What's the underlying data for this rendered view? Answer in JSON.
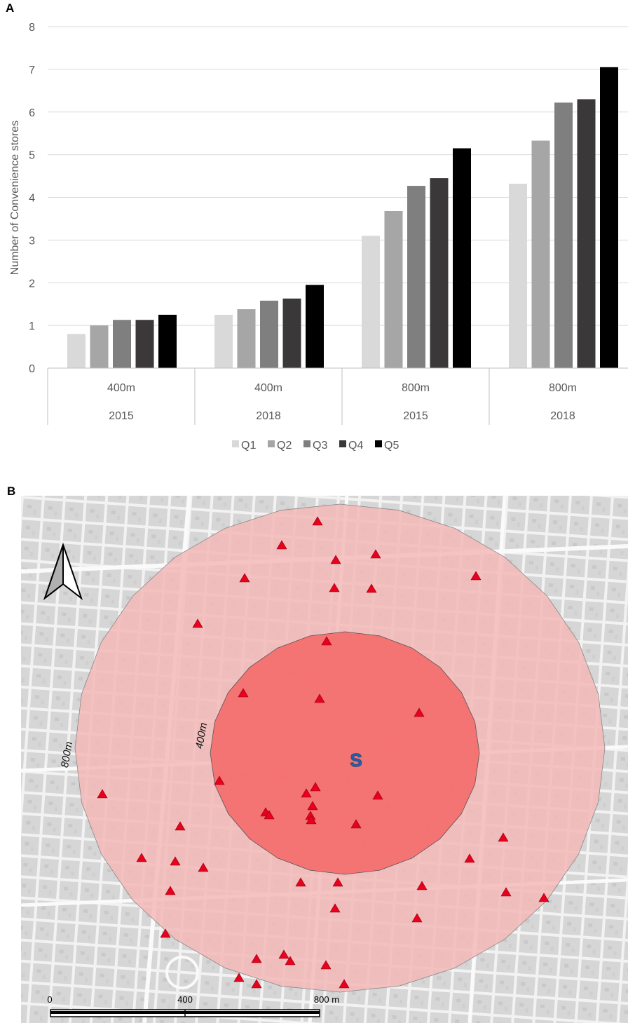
{
  "panel_a_label": "A",
  "panel_b_label": "B",
  "chart_data": {
    "type": "bar",
    "title": "",
    "xlabel": "",
    "ylabel": "Number of Convenience stores",
    "ylim": [
      0,
      8
    ],
    "yticks": [
      0,
      1,
      2,
      3,
      4,
      5,
      6,
      7,
      8
    ],
    "grid": true,
    "legend": "bottom",
    "categories": [
      {
        "buffer": "400m",
        "year": "2015"
      },
      {
        "buffer": "400m",
        "year": "2018"
      },
      {
        "buffer": "800m",
        "year": "2015"
      },
      {
        "buffer": "800m",
        "year": "2018"
      }
    ],
    "series": [
      {
        "name": "Q1",
        "color": "#d9d9d9",
        "values": [
          0.8,
          1.25,
          3.1,
          4.32
        ]
      },
      {
        "name": "Q2",
        "color": "#a6a6a6",
        "values": [
          1.0,
          1.38,
          3.68,
          5.33
        ]
      },
      {
        "name": "Q3",
        "color": "#7f7f7f",
        "values": [
          1.13,
          1.58,
          4.27,
          6.22
        ]
      },
      {
        "name": "Q4",
        "color": "#3a3838",
        "values": [
          1.13,
          1.63,
          4.45,
          6.3
        ]
      },
      {
        "name": "Q5",
        "color": "#000000",
        "values": [
          1.25,
          1.95,
          5.15,
          7.05
        ]
      }
    ]
  },
  "map": {
    "center_label": "S",
    "buffer_inner_label": "400m",
    "buffer_outer_label": "800m",
    "north_arrow_icon": "north-arrow-icon",
    "store_marker_icon": "red-triangle-icon",
    "store_marker_color": "#e8001c",
    "inner_buffer_color": "#f46a6a",
    "outer_buffer_color": "#f5b8b8",
    "scale_bar": {
      "labels": [
        "0",
        "400",
        "800 m"
      ]
    }
  }
}
